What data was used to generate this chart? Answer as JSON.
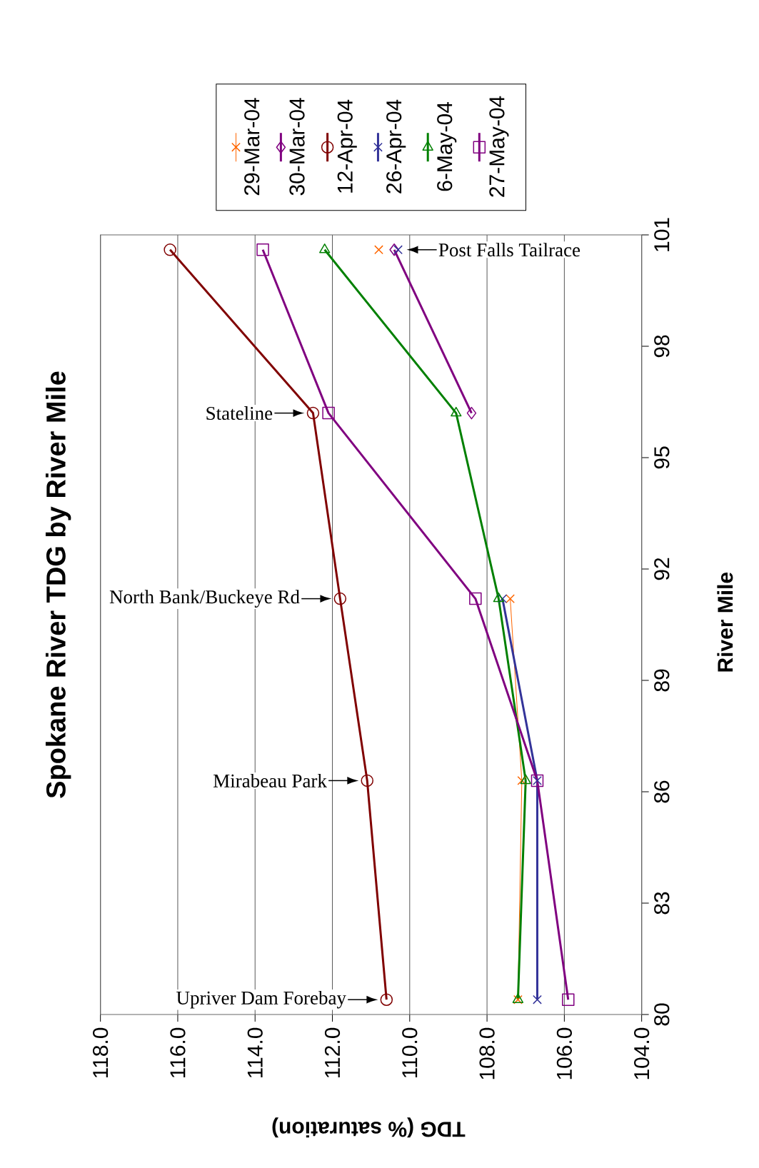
{
  "chart_data": {
    "type": "line",
    "title": "Spokane River TDG by River Mile",
    "xlabel": "TDG (% saturation)",
    "ylabel": "River Mile",
    "series": [
      {
        "name": "29-Mar-04",
        "color": "#ff6600",
        "marker": "cross",
        "x": [
          107.2,
          107.1,
          107.4,
          null,
          110.8
        ],
        "values": [
          80.4,
          86.3,
          91.2,
          null,
          100.6
        ]
      },
      {
        "name": "30-Mar-04",
        "color": "#800080",
        "marker": "diamond",
        "x": [
          108.4,
          110.4
        ],
        "values": [
          96.2,
          100.6
        ]
      },
      {
        "name": "12-Apr-04",
        "color": "#800000",
        "marker": "circle",
        "x": [
          110.6,
          111.1,
          111.8,
          112.5,
          116.2
        ],
        "values": [
          80.4,
          86.3,
          91.2,
          96.2,
          100.6
        ]
      },
      {
        "name": "26-Apr-04",
        "color": "#333399",
        "marker": "cross",
        "x": [
          106.7,
          106.7,
          107.6,
          null,
          110.3
        ],
        "values": [
          80.4,
          86.3,
          91.2,
          null,
          100.6
        ]
      },
      {
        "name": "6-May-04",
        "color": "#008000",
        "marker": "triangle",
        "x": [
          107.2,
          107.0,
          107.7,
          108.8,
          112.2
        ],
        "values": [
          80.4,
          86.3,
          91.2,
          96.2,
          100.6
        ]
      },
      {
        "name": "27-May-04",
        "color": "#800080",
        "marker": "square",
        "x": [
          105.9,
          106.7,
          108.3,
          112.1,
          113.8
        ],
        "values": [
          80.4,
          86.3,
          91.2,
          96.2,
          100.6
        ]
      }
    ],
    "xlim": [
      118,
      104
    ],
    "xticks": [
      {
        "value": 118,
        "label": "118.0"
      },
      {
        "value": 116,
        "label": "116.0"
      },
      {
        "value": 114,
        "label": "114.0"
      },
      {
        "value": 112,
        "label": "112.0"
      },
      {
        "value": 110,
        "label": "110.0"
      },
      {
        "value": 108,
        "label": "108.0"
      },
      {
        "value": 106,
        "label": "106.0"
      },
      {
        "value": 104,
        "label": "104.0"
      }
    ],
    "ylim": [
      80,
      101
    ],
    "yticks": [
      80,
      83,
      86,
      89,
      92,
      95,
      98,
      101
    ],
    "grid": "x",
    "legend": "top",
    "annotations": [
      {
        "text": "Upriver Dam Forebay",
        "x": 110.6,
        "y": 80.4
      },
      {
        "text": "Mirabeau Park",
        "x": 111.1,
        "y": 86.3
      },
      {
        "text": "North Bank/Buckeye Rd",
        "x": 111.8,
        "y": 91.2
      },
      {
        "text": "Stateline",
        "x": 112.5,
        "y": 96.2
      },
      {
        "text": "Post Falls Tailrace",
        "x": 110.3,
        "y": 100.6
      }
    ]
  }
}
